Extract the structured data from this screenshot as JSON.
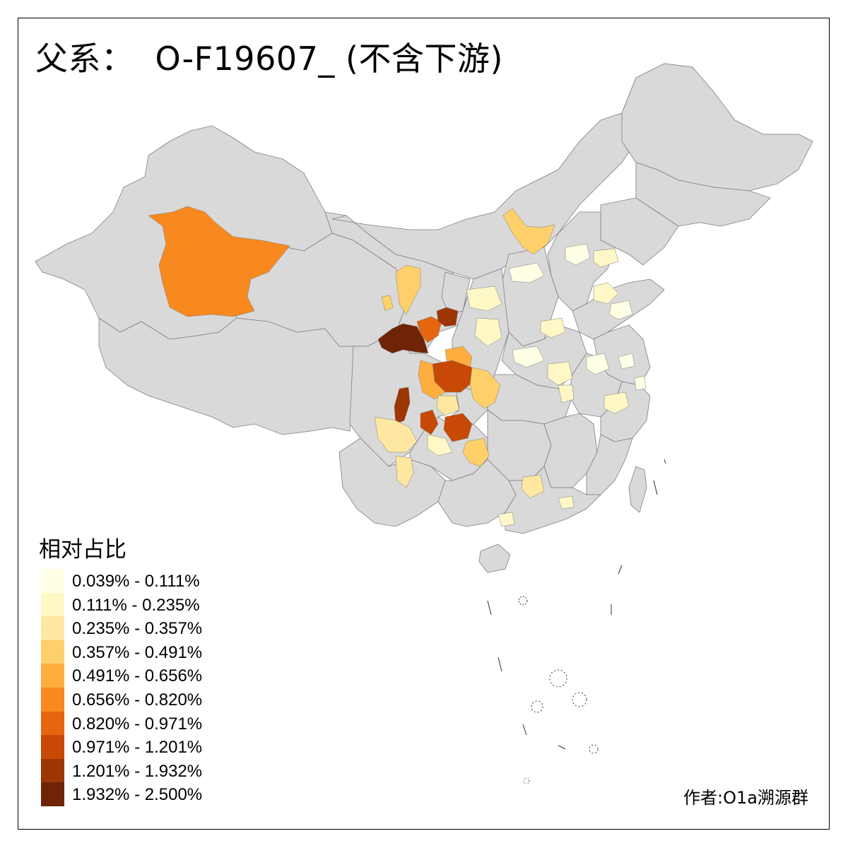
{
  "title": {
    "prefix": "父系：",
    "main": "O-F19607_ (不含下游)"
  },
  "legend": {
    "title": "相对占比",
    "items": [
      {
        "label": "0.039% - 0.111%",
        "color": "#FFFFE5"
      },
      {
        "label": "0.111% - 0.235%",
        "color": "#FFF7C6"
      },
      {
        "label": "0.235% - 0.357%",
        "color": "#FEE7A0"
      },
      {
        "label": "0.357% - 0.491%",
        "color": "#FED06A"
      },
      {
        "label": "0.491% - 0.656%",
        "color": "#FEAE3F"
      },
      {
        "label": "0.656% - 0.820%",
        "color": "#F8891F"
      },
      {
        "label": "0.820% - 0.971%",
        "color": "#E5660E"
      },
      {
        "label": "0.971% - 1.201%",
        "color": "#C84905"
      },
      {
        "label": "1.201% - 1.932%",
        "color": "#9D3504"
      },
      {
        "label": "1.932% - 2.500%",
        "color": "#6F2505"
      }
    ]
  },
  "credit": "作者:O1a溯源群",
  "colors": {
    "no_data": "#D9D9D9",
    "boundary": "#7F7F7F"
  }
}
